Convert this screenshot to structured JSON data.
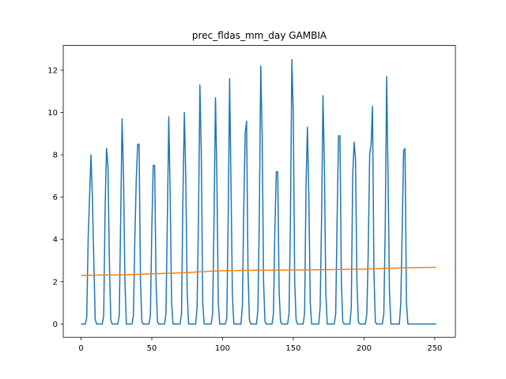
{
  "chart_data": {
    "type": "line",
    "title": "prec_fldas_mm_day GAMBIA",
    "xlabel": "",
    "ylabel": "",
    "xlim": [
      -12.6,
      264.6
    ],
    "ylim": [
      -0.63,
      13.17
    ],
    "x_ticks": [
      0,
      50,
      100,
      150,
      200,
      250
    ],
    "x_tick_labels": [
      "0",
      "50",
      "100",
      "150",
      "200",
      "250"
    ],
    "y_ticks": [
      0,
      2,
      4,
      6,
      8,
      10,
      12
    ],
    "y_tick_labels": [
      "0",
      "2",
      "4",
      "6",
      "8",
      "10",
      "12"
    ],
    "grid": false,
    "legend": "none",
    "series": [
      {
        "color": "#1f77b4",
        "x": [
          0,
          1,
          2,
          3,
          4,
          5,
          6,
          7,
          8,
          9,
          10,
          11,
          12,
          13,
          14,
          15,
          16,
          17,
          18,
          19,
          20,
          21,
          22,
          23,
          24,
          25,
          26,
          27,
          28,
          29,
          30,
          31,
          32,
          33,
          34,
          35,
          36,
          37,
          38,
          39,
          40,
          41,
          42,
          43,
          44,
          45,
          46,
          47,
          48,
          49,
          50,
          51,
          52,
          53,
          54,
          55,
          56,
          57,
          58,
          59,
          60,
          61,
          62,
          63,
          64,
          65,
          66,
          67,
          68,
          69,
          70,
          71,
          72,
          73,
          74,
          75,
          76,
          77,
          78,
          79,
          80,
          81,
          82,
          83,
          84,
          85,
          86,
          87,
          88,
          89,
          90,
          91,
          92,
          93,
          94,
          95,
          96,
          97,
          98,
          99,
          100,
          101,
          102,
          103,
          104,
          105,
          106,
          107,
          108,
          109,
          110,
          111,
          112,
          113,
          114,
          115,
          116,
          117,
          118,
          119,
          120,
          121,
          122,
          123,
          124,
          125,
          126,
          127,
          128,
          129,
          130,
          131,
          132,
          133,
          134,
          135,
          136,
          137,
          138,
          139,
          140,
          141,
          142,
          143,
          144,
          145,
          146,
          147,
          148,
          149,
          150,
          151,
          152,
          153,
          154,
          155,
          156,
          157,
          158,
          159,
          160,
          161,
          162,
          163,
          164,
          165,
          166,
          167,
          168,
          169,
          170,
          171,
          172,
          173,
          174,
          175,
          176,
          177,
          178,
          179,
          180,
          181,
          182,
          183,
          184,
          185,
          186,
          187,
          188,
          189,
          190,
          191,
          192,
          193,
          194,
          195,
          196,
          197,
          198,
          199,
          200,
          201,
          202,
          203,
          204,
          205,
          206,
          207,
          208,
          209,
          210,
          211,
          212,
          213,
          214,
          215,
          216,
          217,
          218,
          219,
          220,
          221,
          222,
          223,
          224,
          225,
          226,
          227,
          228,
          229,
          230,
          231,
          232,
          233,
          234,
          235,
          236,
          237,
          238,
          239,
          240,
          241,
          242,
          243,
          244,
          245,
          246,
          247,
          248,
          249,
          250,
          251
        ],
        "values": [
          0.0,
          0.0,
          0.0,
          0.0,
          0.3,
          4.0,
          6.0,
          8.0,
          6.0,
          3.0,
          0.2,
          0.0,
          0.0,
          0.0,
          0.0,
          0.0,
          0.4,
          5.5,
          8.3,
          7.5,
          3.0,
          0.2,
          0.0,
          0.0,
          0.0,
          0.0,
          0.0,
          0.4,
          5.0,
          9.7,
          7.0,
          2.0,
          0.0,
          0.0,
          0.0,
          0.0,
          0.0,
          0.4,
          4.0,
          6.8,
          8.5,
          8.5,
          2.0,
          0.1,
          0.0,
          0.0,
          0.0,
          0.0,
          0.0,
          0.4,
          4.5,
          7.5,
          7.5,
          2.0,
          0.1,
          0.0,
          0.0,
          0.0,
          0.0,
          0.0,
          0.5,
          5.0,
          9.8,
          6.0,
          1.0,
          0.0,
          0.0,
          0.0,
          0.0,
          0.0,
          0.0,
          0.5,
          6.0,
          10.0,
          7.0,
          1.5,
          0.0,
          0.0,
          0.0,
          0.0,
          0.0,
          0.0,
          0.8,
          5.0,
          11.3,
          8.0,
          1.0,
          0.0,
          0.0,
          0.0,
          0.0,
          0.0,
          0.0,
          0.5,
          5.0,
          10.7,
          7.0,
          1.0,
          0.0,
          0.0,
          0.0,
          0.0,
          0.0,
          0.3,
          5.0,
          11.6,
          6.5,
          1.3,
          0.0,
          0.0,
          0.0,
          0.0,
          0.0,
          0.0,
          0.8,
          5.5,
          9.0,
          9.6,
          2.5,
          0.2,
          0.0,
          0.0,
          0.0,
          0.0,
          0.0,
          0.7,
          5.0,
          12.2,
          9.0,
          2.0,
          0.1,
          0.0,
          0.0,
          0.0,
          0.0,
          0.0,
          0.5,
          4.5,
          7.2,
          7.2,
          1.5,
          0.1,
          0.0,
          0.0,
          0.0,
          0.0,
          0.0,
          0.5,
          5.0,
          12.5,
          10.0,
          2.0,
          0.2,
          0.0,
          0.0,
          0.0,
          0.0,
          0.0,
          0.5,
          6.5,
          9.3,
          6.0,
          1.0,
          0.0,
          0.0,
          0.0,
          0.0,
          0.0,
          0.0,
          0.8,
          5.0,
          10.8,
          7.5,
          1.5,
          0.0,
          0.0,
          0.0,
          0.0,
          0.0,
          0.0,
          0.5,
          5.0,
          8.9,
          8.9,
          2.0,
          0.1,
          0.0,
          0.0,
          0.0,
          0.0,
          0.0,
          0.8,
          7.0,
          8.6,
          7.8,
          2.0,
          0.1,
          0.0,
          0.0,
          0.0,
          0.0,
          0.0,
          0.5,
          3.5,
          8.0,
          8.5,
          10.3,
          2.5,
          0.1,
          0.0,
          0.0,
          0.0,
          0.0,
          0.0,
          0.5,
          4.5,
          11.7,
          7.0,
          1.5,
          0.0,
          0.0,
          0.0,
          0.0,
          0.0,
          0.0,
          0.0,
          1.0,
          4.5,
          8.2,
          8.3,
          1.0,
          0.0,
          0.0,
          0.0,
          0.0,
          0.0,
          0.0,
          0.0,
          0.0,
          0.0,
          0.0,
          0.0,
          0.0,
          0.0,
          0.0,
          0.0,
          0.0,
          0.0,
          0.0,
          0.0,
          0.0,
          0.0
        ]
      },
      {
        "color": "#ff7f0e",
        "x": [
          0,
          25,
          50,
          75,
          90,
          100,
          125,
          150,
          175,
          200,
          225,
          251
        ],
        "values": [
          2.3,
          2.32,
          2.37,
          2.43,
          2.49,
          2.52,
          2.54,
          2.55,
          2.57,
          2.6,
          2.65,
          2.68
        ]
      }
    ]
  }
}
